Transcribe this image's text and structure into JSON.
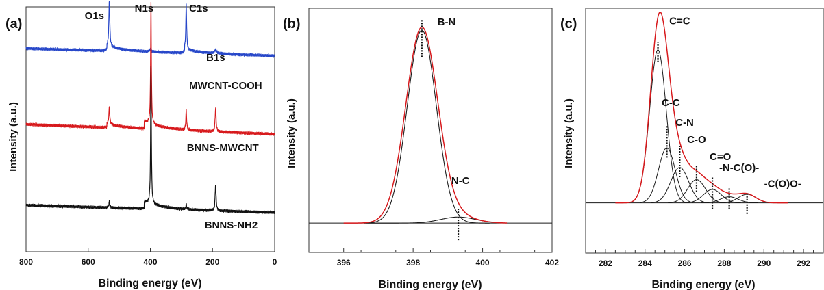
{
  "colors": {
    "blue": "#2747c9",
    "red": "#d7191c",
    "black": "#111111",
    "fit": "#1a1a1a"
  },
  "chart_data": [
    {
      "type": "line",
      "panel_label": "(a)",
      "xlabel": "Binding energy (eV)",
      "ylabel": "Intensity (a.u.)",
      "xlim": [
        800,
        0
      ],
      "x_reversed": true,
      "x_ticks": [
        800,
        600,
        400,
        200,
        0
      ],
      "y_ticks_shown": false,
      "series": [
        {
          "name": "MWCNT-COOH",
          "color": "#2747c9",
          "baseline": 0.815,
          "drift": 0.03,
          "peaks": [
            {
              "x": 532,
              "h": 0.19,
              "w": 1.8
            },
            {
              "x": 400,
              "h": 0.01,
              "w": 3
            },
            {
              "x": 284.6,
              "h": 0.19,
              "w": 1.6
            },
            {
              "x": 190,
              "h": 0.015,
              "w": 4
            }
          ],
          "steps": [
            {
              "x": 540,
              "h": 0.02
            },
            {
              "x": 290,
              "h": 0.015
            }
          ]
        },
        {
          "name": "BNNS-MWCNT",
          "color": "#d7191c",
          "baseline": 0.5,
          "drift": 0.04,
          "peaks": [
            {
              "x": 532,
              "h": 0.07,
              "w": 1.8
            },
            {
              "x": 398,
              "h": 0.5,
              "w": 1.4
            },
            {
              "x": 284.6,
              "h": 0.08,
              "w": 1.6
            },
            {
              "x": 190,
              "h": 0.1,
              "w": 1.8
            }
          ],
          "steps": [
            {
              "x": 420,
              "h": 0.03
            },
            {
              "x": 540,
              "h": 0.015
            }
          ]
        },
        {
          "name": "BNNS-NH2",
          "color": "#111111",
          "baseline": 0.175,
          "drift": 0.03,
          "peaks": [
            {
              "x": 532,
              "h": 0.025,
              "w": 1.8
            },
            {
              "x": 398,
              "h": 0.56,
              "w": 1.4
            },
            {
              "x": 284.6,
              "h": 0.02,
              "w": 1.6
            },
            {
              "x": 190,
              "h": 0.11,
              "w": 1.8
            }
          ],
          "steps": [
            {
              "x": 420,
              "h": 0.03
            }
          ]
        }
      ],
      "annotations": [
        {
          "text": "O1s",
          "x": 580,
          "y": 0.95
        },
        {
          "text": "N1s",
          "x": 420,
          "y": 0.98
        },
        {
          "text": "C1s",
          "x": 245,
          "y": 0.98
        },
        {
          "text": "B1s",
          "x": 190,
          "y": 0.78
        },
        {
          "text": "MWCNT-COOH",
          "x": 158,
          "y": 0.665
        },
        {
          "text": "BNNS-MWCNT",
          "x": 167,
          "y": 0.41
        },
        {
          "text": "BNNS-NH2",
          "x": 140,
          "y": 0.095
        }
      ]
    },
    {
      "type": "line",
      "panel_label": "(b)",
      "xlabel": "Binding energy (eV)",
      "ylabel": "Intensity (a.u.)",
      "xlim": [
        395,
        402
      ],
      "x_ticks": [
        396,
        398,
        400,
        402
      ],
      "baseline_frac": 0.12,
      "series": [
        {
          "name": "B-N",
          "color": "#1a1a1a",
          "center": 398.25,
          "height": 0.79,
          "width": 0.42
        },
        {
          "name": "N-C",
          "color": "#1a1a1a",
          "center": 399.3,
          "height": 0.025,
          "width": 0.5
        },
        {
          "name": "envelope",
          "color": "#d7191c",
          "center": 398.25,
          "height": 0.8,
          "width": 0.46,
          "extra": {
            "center": 399.3,
            "height": 0.025,
            "width": 0.5
          }
        }
      ],
      "annotations": [
        {
          "text": "B-N",
          "x": 398.7,
          "y": 0.93
        },
        {
          "text": "N-C",
          "x": 399.1,
          "y": 0.28
        }
      ],
      "dotted_markers": [
        {
          "x": 398.25,
          "y0": 0.8,
          "y1": 0.955
        },
        {
          "x": 399.3,
          "y0": 0.05,
          "y1": 0.18
        }
      ]
    },
    {
      "type": "line",
      "panel_label": "(c)",
      "xlabel": "Binding energy (eV)",
      "ylabel": "Intensity (a.u.)",
      "xlim": [
        281,
        293
      ],
      "x_ticks": [
        282,
        284,
        286,
        288,
        290,
        292
      ],
      "baseline_frac": 0.205,
      "series": [
        {
          "name": "C=C",
          "center": 284.65,
          "height": 0.625,
          "width": 0.42
        },
        {
          "name": "C-C",
          "center": 285.1,
          "height": 0.225,
          "width": 0.42
        },
        {
          "name": "C-N",
          "center": 285.75,
          "height": 0.145,
          "width": 0.45
        },
        {
          "name": "C-O",
          "center": 286.6,
          "height": 0.095,
          "width": 0.45
        },
        {
          "name": "C=O",
          "center": 287.4,
          "height": 0.055,
          "width": 0.45
        },
        {
          "name": "-N-C(O)-",
          "center": 288.25,
          "height": 0.025,
          "width": 0.45
        },
        {
          "name": "-C(O)O-",
          "center": 289.15,
          "height": 0.035,
          "width": 0.45
        }
      ],
      "envelope": {
        "color": "#d7191c",
        "start": 282.5,
        "end": 291.2
      },
      "annotations": [
        {
          "text": "C=C",
          "x": 285.75,
          "y": 0.935
        },
        {
          "text": "C-C",
          "x": 285.3,
          "y": 0.6
        },
        {
          "text": "C-N",
          "x": 286.0,
          "y": 0.52
        },
        {
          "text": "C-O",
          "x": 286.6,
          "y": 0.45
        },
        {
          "text": "C=O",
          "x": 287.8,
          "y": 0.38
        },
        {
          "text": "-N-C(O)-",
          "x": 288.75,
          "y": 0.335
        },
        {
          "text": "-C(O)O-",
          "x": 290.95,
          "y": 0.27
        }
      ],
      "dotted_markers": [
        {
          "x": 284.65,
          "y0": 0.78,
          "y1": 0.86
        },
        {
          "x": 285.1,
          "y0": 0.39,
          "y1": 0.52
        },
        {
          "x": 285.75,
          "y0": 0.31,
          "y1": 0.44
        },
        {
          "x": 286.6,
          "y0": 0.25,
          "y1": 0.36
        },
        {
          "x": 287.4,
          "y0": 0.18,
          "y1": 0.31
        },
        {
          "x": 288.25,
          "y0": 0.18,
          "y1": 0.27
        },
        {
          "x": 289.15,
          "y0": 0.16,
          "y1": 0.25
        }
      ]
    }
  ]
}
